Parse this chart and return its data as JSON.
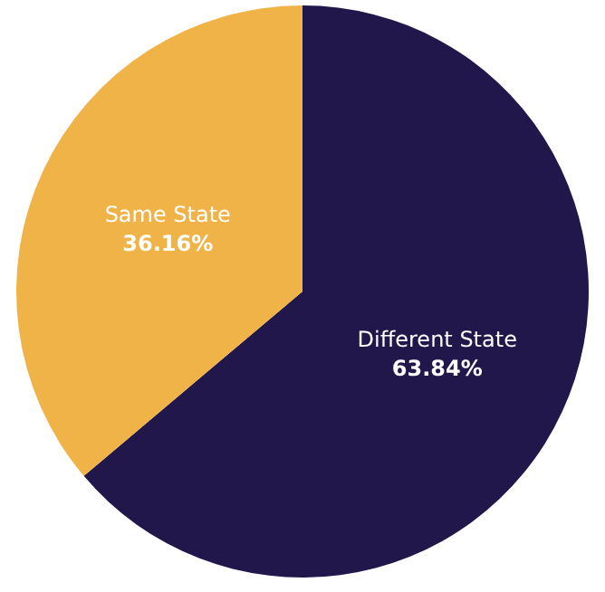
{
  "chart_data": {
    "type": "pie",
    "categories": [
      "Different State",
      "Same State"
    ],
    "values": [
      63.84,
      36.16
    ],
    "colors": [
      "#22174b",
      "#efb348"
    ],
    "value_labels": [
      "63.84%",
      "36.16%"
    ],
    "legend": false
  }
}
